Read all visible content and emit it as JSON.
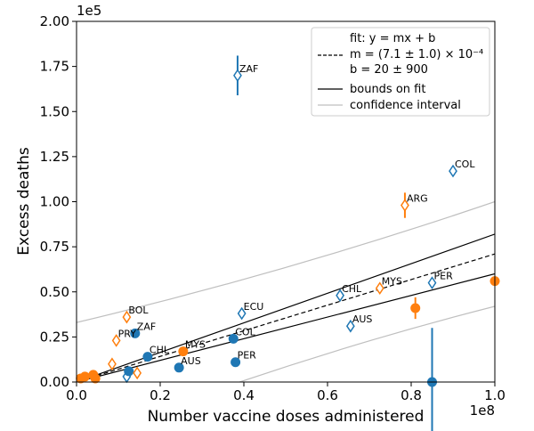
{
  "chart_data": {
    "type": "scatter",
    "xlabel": "Number vaccine doses administered",
    "ylabel": "Excess deaths",
    "x_offset_label": "1e8",
    "y_offset_label": "1e5",
    "xlim": [
      0,
      1.0
    ],
    "ylim": [
      0,
      2.0
    ],
    "xticks": [
      "0.0",
      "0.2",
      "0.4",
      "0.6",
      "0.8",
      "1.0"
    ],
    "yticks": [
      "0.00",
      "0.25",
      "0.50",
      "0.75",
      "1.00",
      "1.25",
      "1.50",
      "1.75",
      "2.00"
    ],
    "grid": false,
    "legend_position": "top-right",
    "legend": {
      "fit_line": "fit: y = mx + b",
      "m_line": "m = (7.1 ± 1.0) × 10⁻⁴",
      "b_line": "b = 20 ± 900",
      "bounds": "bounds on fit",
      "ci": "confidence interval"
    },
    "colors": {
      "blue": "#1f77b4",
      "orange": "#ff7f0e",
      "fit": "#000000",
      "ci": "#bfbfbf"
    },
    "fit": {
      "m": 0.71,
      "b": 0.0002
    },
    "bounds": {
      "upper_m": 0.82,
      "lower_m": 0.6
    },
    "ci": {
      "upper": [
        [
          0,
          0.33
        ],
        [
          1.0,
          1.0
        ]
      ],
      "lower": [
        [
          0.39,
          0
        ],
        [
          1.0,
          0.42
        ]
      ]
    },
    "series": [
      {
        "marker": "diamond-open",
        "color": "blue",
        "points": [
          {
            "x": 0.385,
            "y": 1.7,
            "err": 0.11,
            "label": "ZAF"
          },
          {
            "x": 0.9,
            "y": 1.17,
            "err": 0,
            "label": "COL"
          },
          {
            "x": 0.63,
            "y": 0.48,
            "err": 0,
            "label": "CHL"
          },
          {
            "x": 0.85,
            "y": 0.55,
            "err": 0,
            "label": "PER"
          },
          {
            "x": 0.395,
            "y": 0.38,
            "err": 0,
            "label": "ECU"
          },
          {
            "x": 0.655,
            "y": 0.31,
            "err": 0,
            "label": "AUS"
          },
          {
            "x": 0.12,
            "y": 0.03,
            "err": 0,
            "label": ""
          }
        ]
      },
      {
        "marker": "circle-filled",
        "color": "blue",
        "points": [
          {
            "x": 0.14,
            "y": 0.27,
            "err": 0,
            "label": "ZAF"
          },
          {
            "x": 0.17,
            "y": 0.14,
            "err": 0,
            "label": "CHL"
          },
          {
            "x": 0.375,
            "y": 0.24,
            "err": 0,
            "label": "COL"
          },
          {
            "x": 0.245,
            "y": 0.08,
            "err": 0,
            "label": "AUS"
          },
          {
            "x": 0.38,
            "y": 0.11,
            "err": 0,
            "label": "PER"
          },
          {
            "x": 0.85,
            "y": 0.0,
            "err": 0.3,
            "label": ""
          },
          {
            "x": 0.125,
            "y": 0.06,
            "err": 0,
            "label": ""
          }
        ]
      },
      {
        "marker": "diamond-open",
        "color": "orange",
        "points": [
          {
            "x": 0.785,
            "y": 0.98,
            "err": 0.07,
            "label": "ARG"
          },
          {
            "x": 0.725,
            "y": 0.52,
            "err": 0,
            "label": "MYS"
          },
          {
            "x": 0.12,
            "y": 0.36,
            "err": 0,
            "label": "BOL"
          },
          {
            "x": 0.095,
            "y": 0.23,
            "err": 0,
            "label": "PRY"
          },
          {
            "x": 0.085,
            "y": 0.1,
            "err": 0,
            "label": ""
          },
          {
            "x": 0.145,
            "y": 0.05,
            "err": 0,
            "label": ""
          }
        ]
      },
      {
        "marker": "circle-filled",
        "color": "orange",
        "points": [
          {
            "x": 0.255,
            "y": 0.17,
            "err": 0,
            "label": "MYS"
          },
          {
            "x": 0.81,
            "y": 0.41,
            "err": 0.06,
            "label": ""
          },
          {
            "x": 1.0,
            "y": 0.56,
            "err": 0,
            "label": ""
          },
          {
            "x": 0.02,
            "y": 0.03,
            "err": 0,
            "label": ""
          },
          {
            "x": 0.04,
            "y": 0.04,
            "err": 0,
            "label": ""
          },
          {
            "x": 0.045,
            "y": 0.02,
            "err": 0,
            "label": ""
          },
          {
            "x": 0.01,
            "y": 0.02,
            "err": 0,
            "label": ""
          }
        ]
      }
    ]
  }
}
